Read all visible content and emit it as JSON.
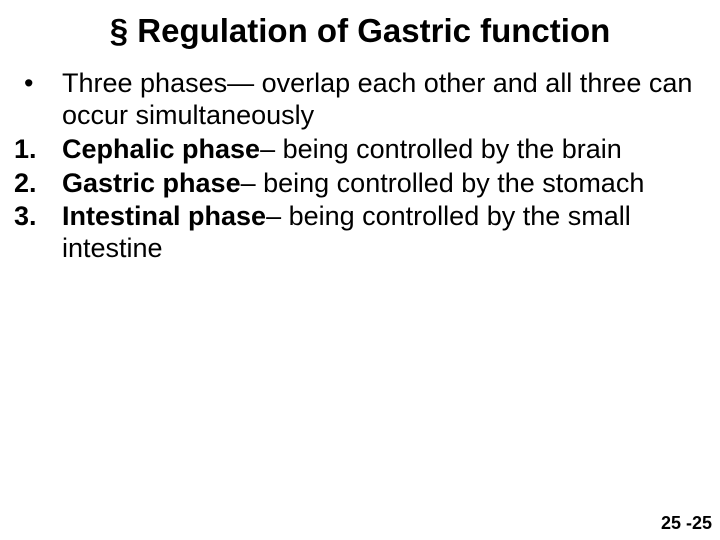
{
  "title": "§ Regulation of Gastric function",
  "title_fontsize": 33,
  "body_fontsize": 27,
  "line_height": 1.18,
  "bullet_glyph": "•",
  "intro": "Three phases— overlap each other and all three can occur simultaneously",
  "items": [
    {
      "num": "1.",
      "bold": "Cephalic phase",
      "rest": "– being controlled by the brain"
    },
    {
      "num": "2.",
      "bold": "Gastric phase",
      "rest": "– being controlled by the stomach"
    },
    {
      "num": "3.",
      "bold": "Intestinal phase",
      "rest": "– being controlled by the small intestine"
    }
  ],
  "page_number": "25 -25",
  "page_number_fontsize": 18,
  "colors": {
    "text": "#000000",
    "background": "#ffffff"
  }
}
